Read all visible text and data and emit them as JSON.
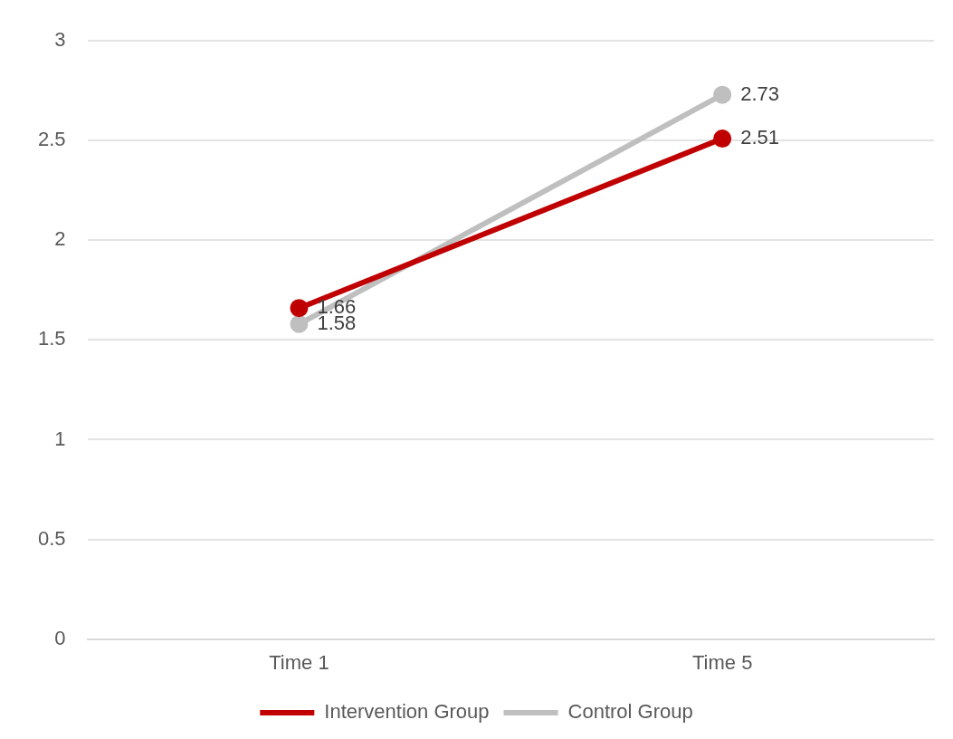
{
  "chart_data": {
    "type": "line",
    "categories": [
      "Time 1",
      "Time 5"
    ],
    "series": [
      {
        "name": "Intervention Group",
        "color": "#c00000",
        "values": [
          1.66,
          2.51
        ]
      },
      {
        "name": "Control Group",
        "color": "#bfbfbf",
        "values": [
          1.58,
          2.73
        ]
      }
    ],
    "ylim": [
      0,
      3
    ],
    "yticks": [
      0,
      0.5,
      1,
      1.5,
      2,
      2.5,
      3
    ],
    "grid": "y",
    "legend": "bottom",
    "marker": "circle",
    "line_style": "solid",
    "data_labels": true
  }
}
